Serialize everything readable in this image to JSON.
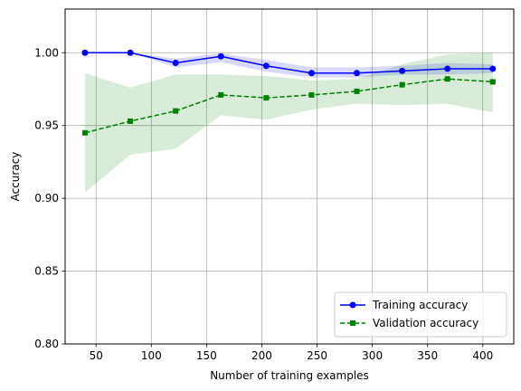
{
  "chart_data": {
    "type": "line",
    "xlabel": "Number of training examples",
    "ylabel": "Accuracy",
    "xlim": [
      22,
      428
    ],
    "ylim": [
      0.8,
      1.03
    ],
    "xticks": [
      50,
      100,
      150,
      200,
      250,
      300,
      350,
      400
    ],
    "yticks": [
      0.8,
      0.85,
      0.9,
      0.95,
      1.0
    ],
    "ytick_labels": [
      "0.80",
      "0.85",
      "0.90",
      "0.95",
      "1.00"
    ],
    "grid": true,
    "legend_position": "lower-right",
    "x": [
      40,
      81,
      122,
      163,
      204,
      245,
      286,
      327,
      368,
      409
    ],
    "series": [
      {
        "name": "Training accuracy",
        "color": "#0000ff",
        "band_color": "#0000ff",
        "line_style": "solid",
        "marker": "circle",
        "values": [
          1.0,
          1.0,
          0.993,
          0.9975,
          0.991,
          0.986,
          0.986,
          0.9875,
          0.989,
          0.989
        ],
        "band_lower": [
          1.0,
          1.0,
          0.99,
          0.9935,
          0.987,
          0.983,
          0.983,
          0.985,
          0.985,
          0.986
        ],
        "band_upper": [
          1.0,
          1.0,
          0.996,
          0.9995,
          0.995,
          0.99,
          0.99,
          0.991,
          0.993,
          0.992
        ]
      },
      {
        "name": "Validation accuracy",
        "color": "#008000",
        "band_color": "#008000",
        "line_style": "dashed",
        "marker": "square",
        "values": [
          0.945,
          0.953,
          0.96,
          0.971,
          0.969,
          0.971,
          0.9735,
          0.978,
          0.982,
          0.98
        ],
        "band_lower": [
          0.904,
          0.93,
          0.934,
          0.957,
          0.954,
          0.961,
          0.965,
          0.964,
          0.965,
          0.959
        ],
        "band_upper": [
          0.986,
          0.976,
          0.985,
          0.985,
          0.984,
          0.981,
          0.982,
          0.992,
          0.999,
          1.0
        ]
      }
    ]
  }
}
